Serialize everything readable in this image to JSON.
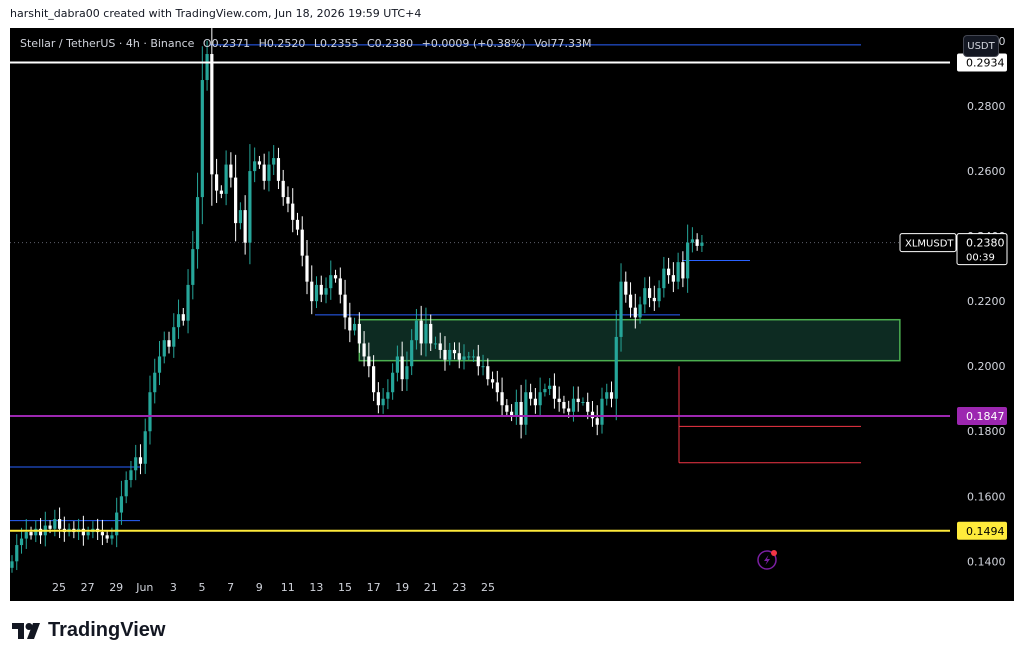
{
  "attribution": "harshit_dabra00 created with TradingView.com, Jun 18, 2026 19:59 UTC+4",
  "header": {
    "pair": "Stellar / TetherUS · 4h · Binance",
    "open": "O0.2371",
    "high": "H0.2520",
    "low": "L0.2355",
    "close": "C0.2380",
    "change": "+0.0009 (+0.38%)",
    "volume": "Vol77.33M"
  },
  "currency_button": "USDT",
  "footer_brand": "TradingView",
  "price_tags": {
    "resistance": "0.2934",
    "current_symbol": "XLMUSDT",
    "current_price": "0.2380",
    "countdown": "00:39",
    "mid_support": "0.1847",
    "low_support": "0.1494"
  },
  "colors": {
    "up": "#26a69a",
    "down": "#ffffff",
    "resistance_line": "#ffffff",
    "mid_line": "#9c27b0",
    "low_line": "#ffeb3b",
    "zone_border": "#4caf50",
    "zone_fill": "#0d2b22",
    "background": "#000000"
  },
  "chart_data": {
    "type": "candlestick",
    "symbol": "XLMUSDT",
    "timeframe": "4h",
    "exchange": "Binance",
    "ylim": [
      0.1278,
      0.304
    ],
    "y_ticks": [
      "0.1400",
      "0.1600",
      "0.1800",
      "0.2000",
      "0.2200",
      "0.2400",
      "0.2600",
      "0.2800",
      "0.3000"
    ],
    "x_ticks": [
      "25",
      "27",
      "29",
      "Jun",
      "3",
      "5",
      "7",
      "9",
      "11",
      "13",
      "15",
      "17",
      "19",
      "21",
      "23",
      "25"
    ],
    "horizontal_levels": [
      {
        "name": "resistance",
        "price": 0.2934
      },
      {
        "name": "mid_support",
        "price": 0.1847
      },
      {
        "name": "low_support",
        "price": 0.1494
      }
    ],
    "zone": {
      "top": 0.2143,
      "bottom": 0.2017,
      "from": "Jun 4",
      "to": "Jun 23"
    },
    "closes": [
      0.14,
      0.145,
      0.147,
      0.149,
      0.148,
      0.15,
      0.148,
      0.151,
      0.15,
      0.153,
      0.15,
      0.149,
      0.15,
      0.149,
      0.15,
      0.148,
      0.149,
      0.15,
      0.149,
      0.148,
      0.147,
      0.148,
      0.155,
      0.16,
      0.165,
      0.168,
      0.172,
      0.17,
      0.18,
      0.192,
      0.198,
      0.203,
      0.208,
      0.206,
      0.212,
      0.216,
      0.214,
      0.225,
      0.236,
      0.252,
      0.288,
      0.296,
      0.259,
      0.254,
      0.253,
      0.262,
      0.258,
      0.244,
      0.248,
      0.238,
      0.26,
      0.263,
      0.262,
      0.257,
      0.262,
      0.264,
      0.257,
      0.252,
      0.25,
      0.245,
      0.242,
      0.234,
      0.226,
      0.22,
      0.225,
      0.222,
      0.224,
      0.228,
      0.227,
      0.222,
      0.215,
      0.211,
      0.213,
      0.207,
      0.203,
      0.2,
      0.192,
      0.188,
      0.19,
      0.192,
      0.198,
      0.203,
      0.196,
      0.2,
      0.208,
      0.214,
      0.207,
      0.213,
      0.207,
      0.207,
      0.205,
      0.202,
      0.205,
      0.204,
      0.202,
      0.203,
      0.203,
      0.203,
      0.2,
      0.2,
      0.196,
      0.195,
      0.192,
      0.188,
      0.186,
      0.185,
      0.189,
      0.182,
      0.192,
      0.19,
      0.188,
      0.192,
      0.193,
      0.194,
      0.19,
      0.189,
      0.187,
      0.186,
      0.19,
      0.189,
      0.189,
      0.186,
      0.184,
      0.182,
      0.19,
      0.192,
      0.19,
      0.209,
      0.226,
      0.222,
      0.218,
      0.215,
      0.219,
      0.224,
      0.221,
      0.22,
      0.224,
      0.23,
      0.228,
      0.226,
      0.232,
      0.227,
      0.238,
      0.239,
      0.237,
      0.238
    ]
  }
}
